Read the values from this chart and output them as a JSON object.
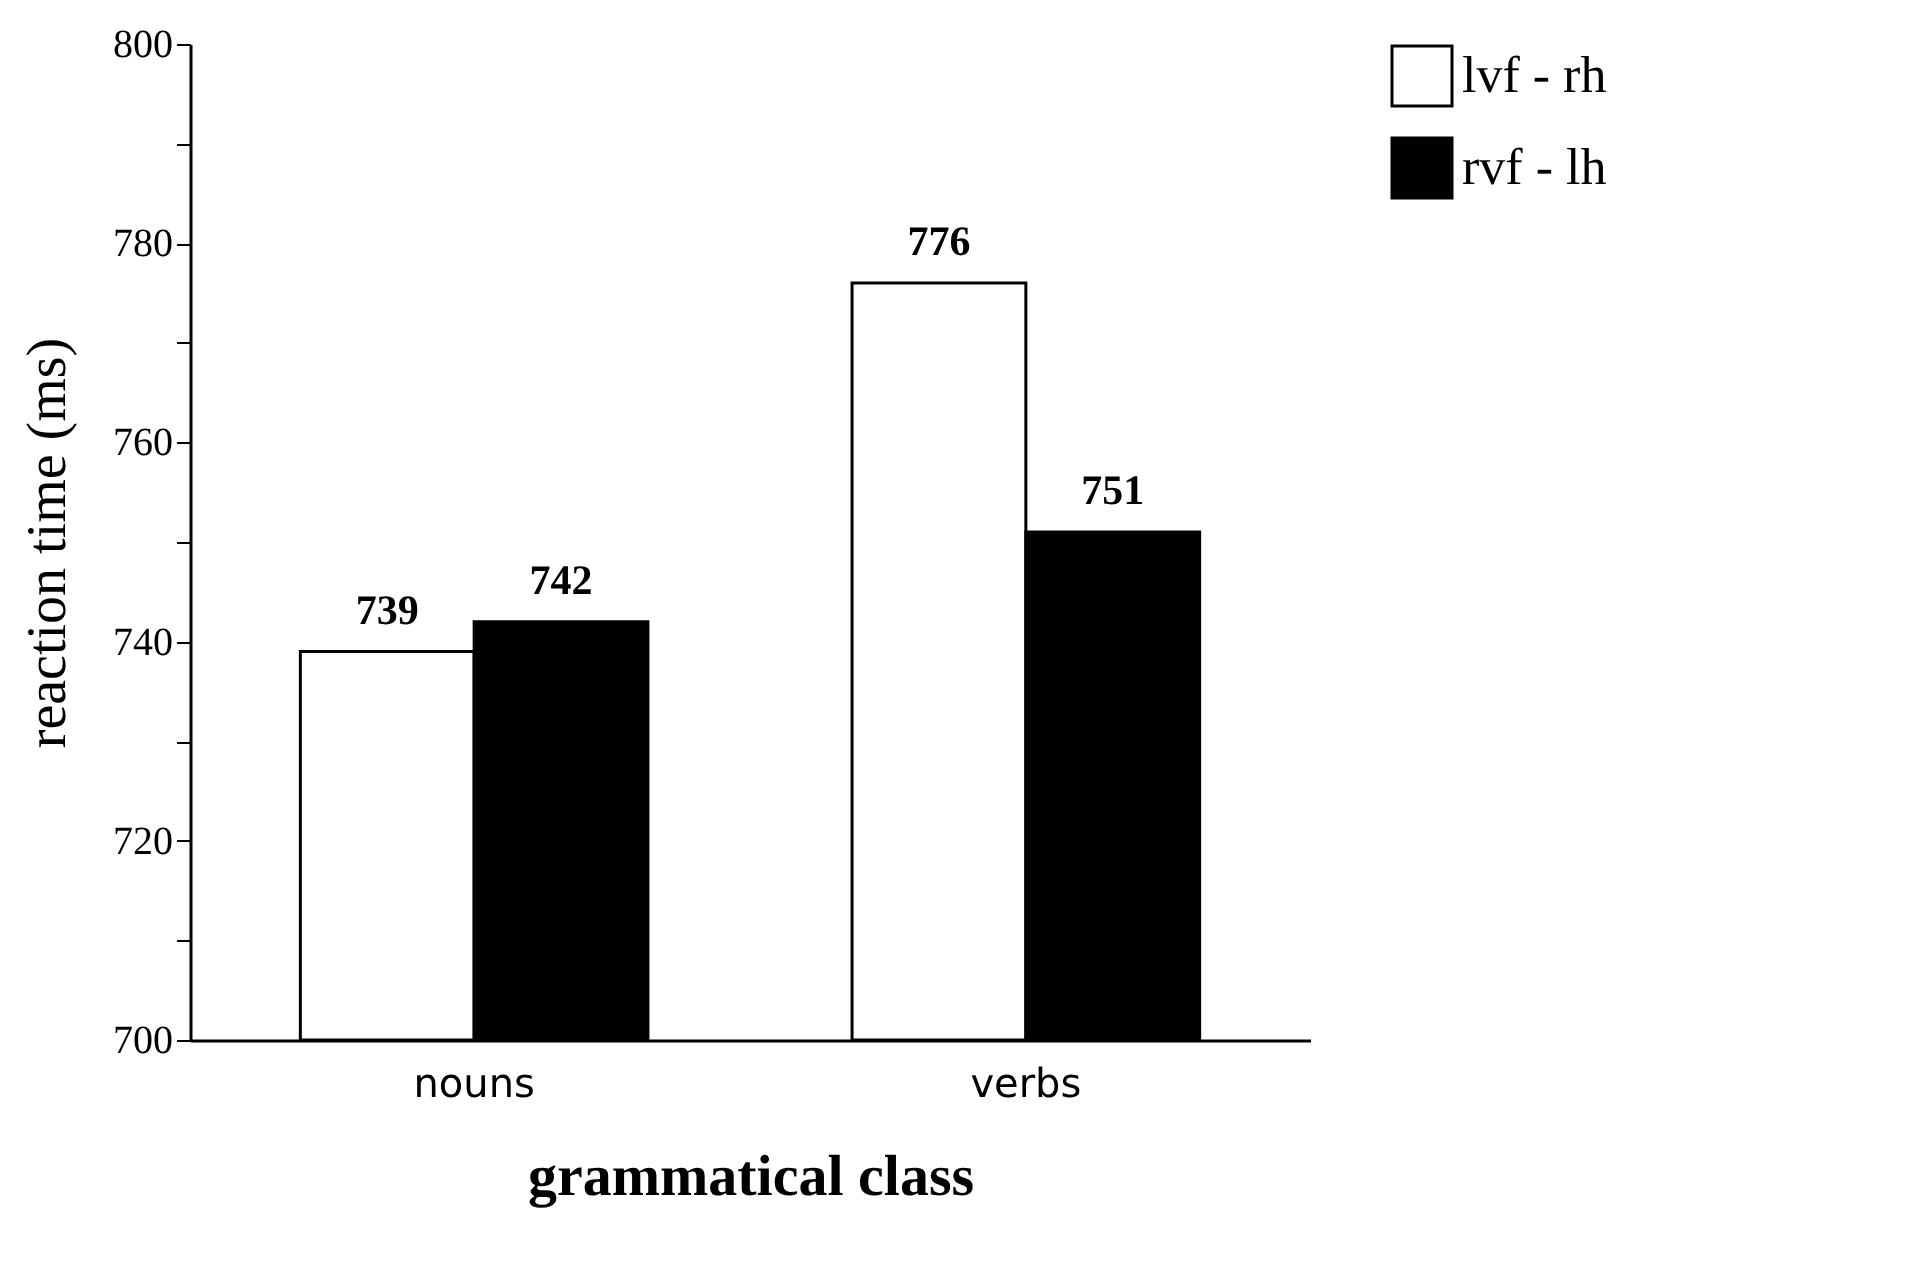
{
  "chart_data": {
    "type": "bar",
    "xlabel": "grammatical class",
    "ylabel": "reaction time (ms)",
    "categories": [
      "nouns",
      "verbs"
    ],
    "series": [
      {
        "name": "lvf - rh",
        "color": "#ffffff",
        "values": [
          739,
          776
        ]
      },
      {
        "name": "rvf - lh",
        "color": "#000000",
        "values": [
          742,
          751
        ]
      }
    ],
    "ylim": [
      700,
      800
    ],
    "yticks": [
      700,
      {
        "value": 710,
        "label": null
      },
      720,
      {
        "value": 730,
        "label": null
      },
      740,
      {
        "value": 750,
        "label": null
      },
      760,
      {
        "value": 770,
        "label": null
      },
      780,
      {
        "value": 790,
        "label": null
      },
      800
    ],
    "grid": false,
    "legend": "top right",
    "data_labels": true
  }
}
